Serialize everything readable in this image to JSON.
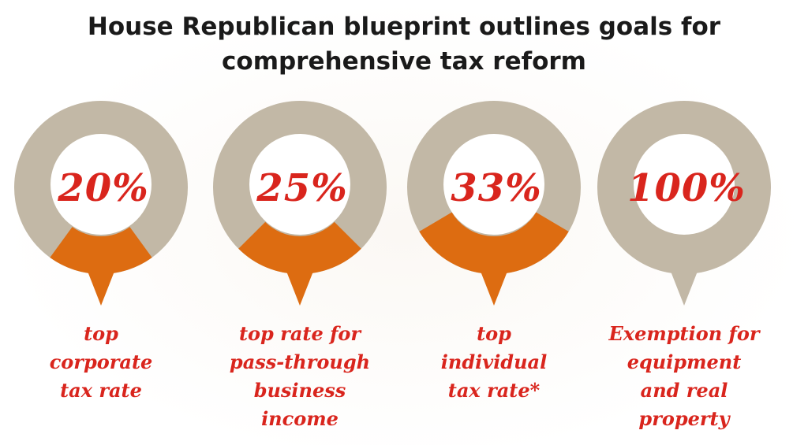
{
  "title_line1": "House Republican blueprint outlines goals for",
  "title_line2": "comprehensive tax reform",
  "colors": {
    "ring": "#c2b8a6",
    "segment": "#dd6c11",
    "text_red": "#d9251d",
    "inner": "#ffffff"
  },
  "chart_data": {
    "type": "donut",
    "title": "House Republican blueprint outlines goals for comprehensive tax reform",
    "items": [
      {
        "value": 20,
        "label": "20%",
        "caption": [
          "top",
          "corporate",
          "tax rate"
        ]
      },
      {
        "value": 25,
        "label": "25%",
        "caption": [
          "top rate for",
          "pass-through",
          "business",
          "income"
        ]
      },
      {
        "value": 33,
        "label": "33%",
        "caption": [
          "top",
          "individual",
          "tax rate*"
        ]
      },
      {
        "value": 100,
        "label": "100%",
        "caption": [
          "Exemption for",
          "equipment",
          "and real",
          "property"
        ]
      }
    ]
  }
}
